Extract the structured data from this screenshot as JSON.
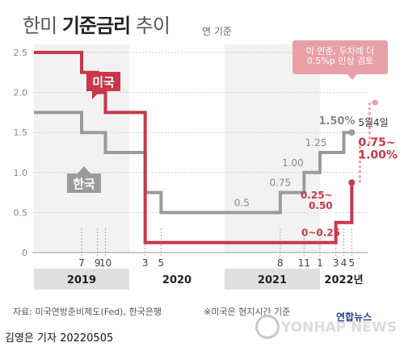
{
  "header": {
    "title_part1": "한미",
    "title_bold": "기준금리",
    "title_part2": "추이",
    "unit": "연 기준"
  },
  "footer": {
    "source": "자료: 미국연방준비제도(Fed), 한국은행",
    "note": "※미국은 현지시간 기준",
    "credit": "김영은 기자  20220505",
    "brand_ko": "연합뉴스",
    "brand_en": "YONHAP NEWS"
  },
  "colors": {
    "us": "#c8374a",
    "korea": "#9b9b9b",
    "us_forecast": "#e8a0a6",
    "shade": "#e0e0e0"
  },
  "chart_data": {
    "type": "line",
    "title": "한미 기준금리 추이",
    "ylabel": "연 기준",
    "ylim": [
      0,
      2.5
    ],
    "yticks": [
      "0",
      "0.5",
      "1.0",
      "1.5",
      "2.0",
      "2.5"
    ],
    "x_range": [
      "2019-01",
      "2022-07"
    ],
    "month_ticks": [
      {
        "label": "7",
        "x": "2019-07"
      },
      {
        "label": "9",
        "x": "2019-09"
      },
      {
        "label": "10",
        "x": "2019-10"
      },
      {
        "label": "3",
        "x": "2020-03"
      },
      {
        "label": "5",
        "x": "2020-05"
      },
      {
        "label": "8",
        "x": "2021-08"
      },
      {
        "label": "11",
        "x": "2021-11"
      },
      {
        "label": "1",
        "x": "2022-01"
      },
      {
        "label": "3",
        "x": "2022-03"
      },
      {
        "label": "4",
        "x": "2022-04"
      },
      {
        "label": "5",
        "x": "2022-05"
      }
    ],
    "year_labels": [
      {
        "label": "2019",
        "x": "2019-07",
        "shaded": true,
        "from": "2019-01",
        "to": "2020-01"
      },
      {
        "label": "2020",
        "x": "2020-07",
        "shaded": false
      },
      {
        "label": "2021",
        "x": "2021-07",
        "shaded": true,
        "from": "2021-01",
        "to": "2022-01"
      },
      {
        "label": "2022년",
        "x": "2022-04",
        "shaded": false
      }
    ],
    "series": [
      {
        "name": "미국",
        "points": [
          {
            "x": "2019-01",
            "y": 2.5
          },
          {
            "x": "2019-07",
            "y": 2.25
          },
          {
            "x": "2019-09",
            "y": 2.0
          },
          {
            "x": "2019-10",
            "y": 1.75
          },
          {
            "x": "2020-03",
            "y": 1.25
          },
          {
            "x": "2020-03",
            "y": 0.125
          },
          {
            "x": "2022-03",
            "y": 0.375
          },
          {
            "x": "2022-05",
            "y": 0.875
          }
        ]
      },
      {
        "name": "한국",
        "points": [
          {
            "x": "2019-01",
            "y": 1.75
          },
          {
            "x": "2019-07",
            "y": 1.5
          },
          {
            "x": "2019-10",
            "y": 1.25
          },
          {
            "x": "2020-03",
            "y": 0.75
          },
          {
            "x": "2020-05",
            "y": 0.5
          },
          {
            "x": "2021-08",
            "y": 0.75
          },
          {
            "x": "2021-11",
            "y": 1.0
          },
          {
            "x": "2022-01",
            "y": 1.25
          },
          {
            "x": "2022-04",
            "y": 1.5
          },
          {
            "x": "2022-05",
            "y": 1.5
          }
        ]
      }
    ],
    "forecast_note": "미 연준, 두차례 더\n0.5%p 인상 검토",
    "annotations": [
      {
        "text": "0~0.25",
        "x": "2021-01",
        "y": 0.125,
        "series": "미국"
      },
      {
        "text": "0.25~\n0.50",
        "x": "2022-03",
        "y": 0.375,
        "series": "미국"
      },
      {
        "text": "5월4일",
        "x": "2022-05",
        "y": 0.875,
        "series": "미국"
      },
      {
        "text": "0.75~\n1.00%",
        "x": "2022-05",
        "y": 0.875,
        "series": "미국"
      },
      {
        "text": "0.5",
        "x": "2020-05",
        "y": 0.5,
        "series": "한국"
      },
      {
        "text": "0.75",
        "x": "2021-08",
        "y": 0.75,
        "series": "한국"
      },
      {
        "text": "1.00",
        "x": "2021-11",
        "y": 1.0,
        "series": "한국"
      },
      {
        "text": "1.25",
        "x": "2022-01",
        "y": 1.25,
        "series": "한국"
      },
      {
        "text": "1.50%",
        "x": "2022-04",
        "y": 1.5,
        "series": "한국"
      }
    ]
  }
}
